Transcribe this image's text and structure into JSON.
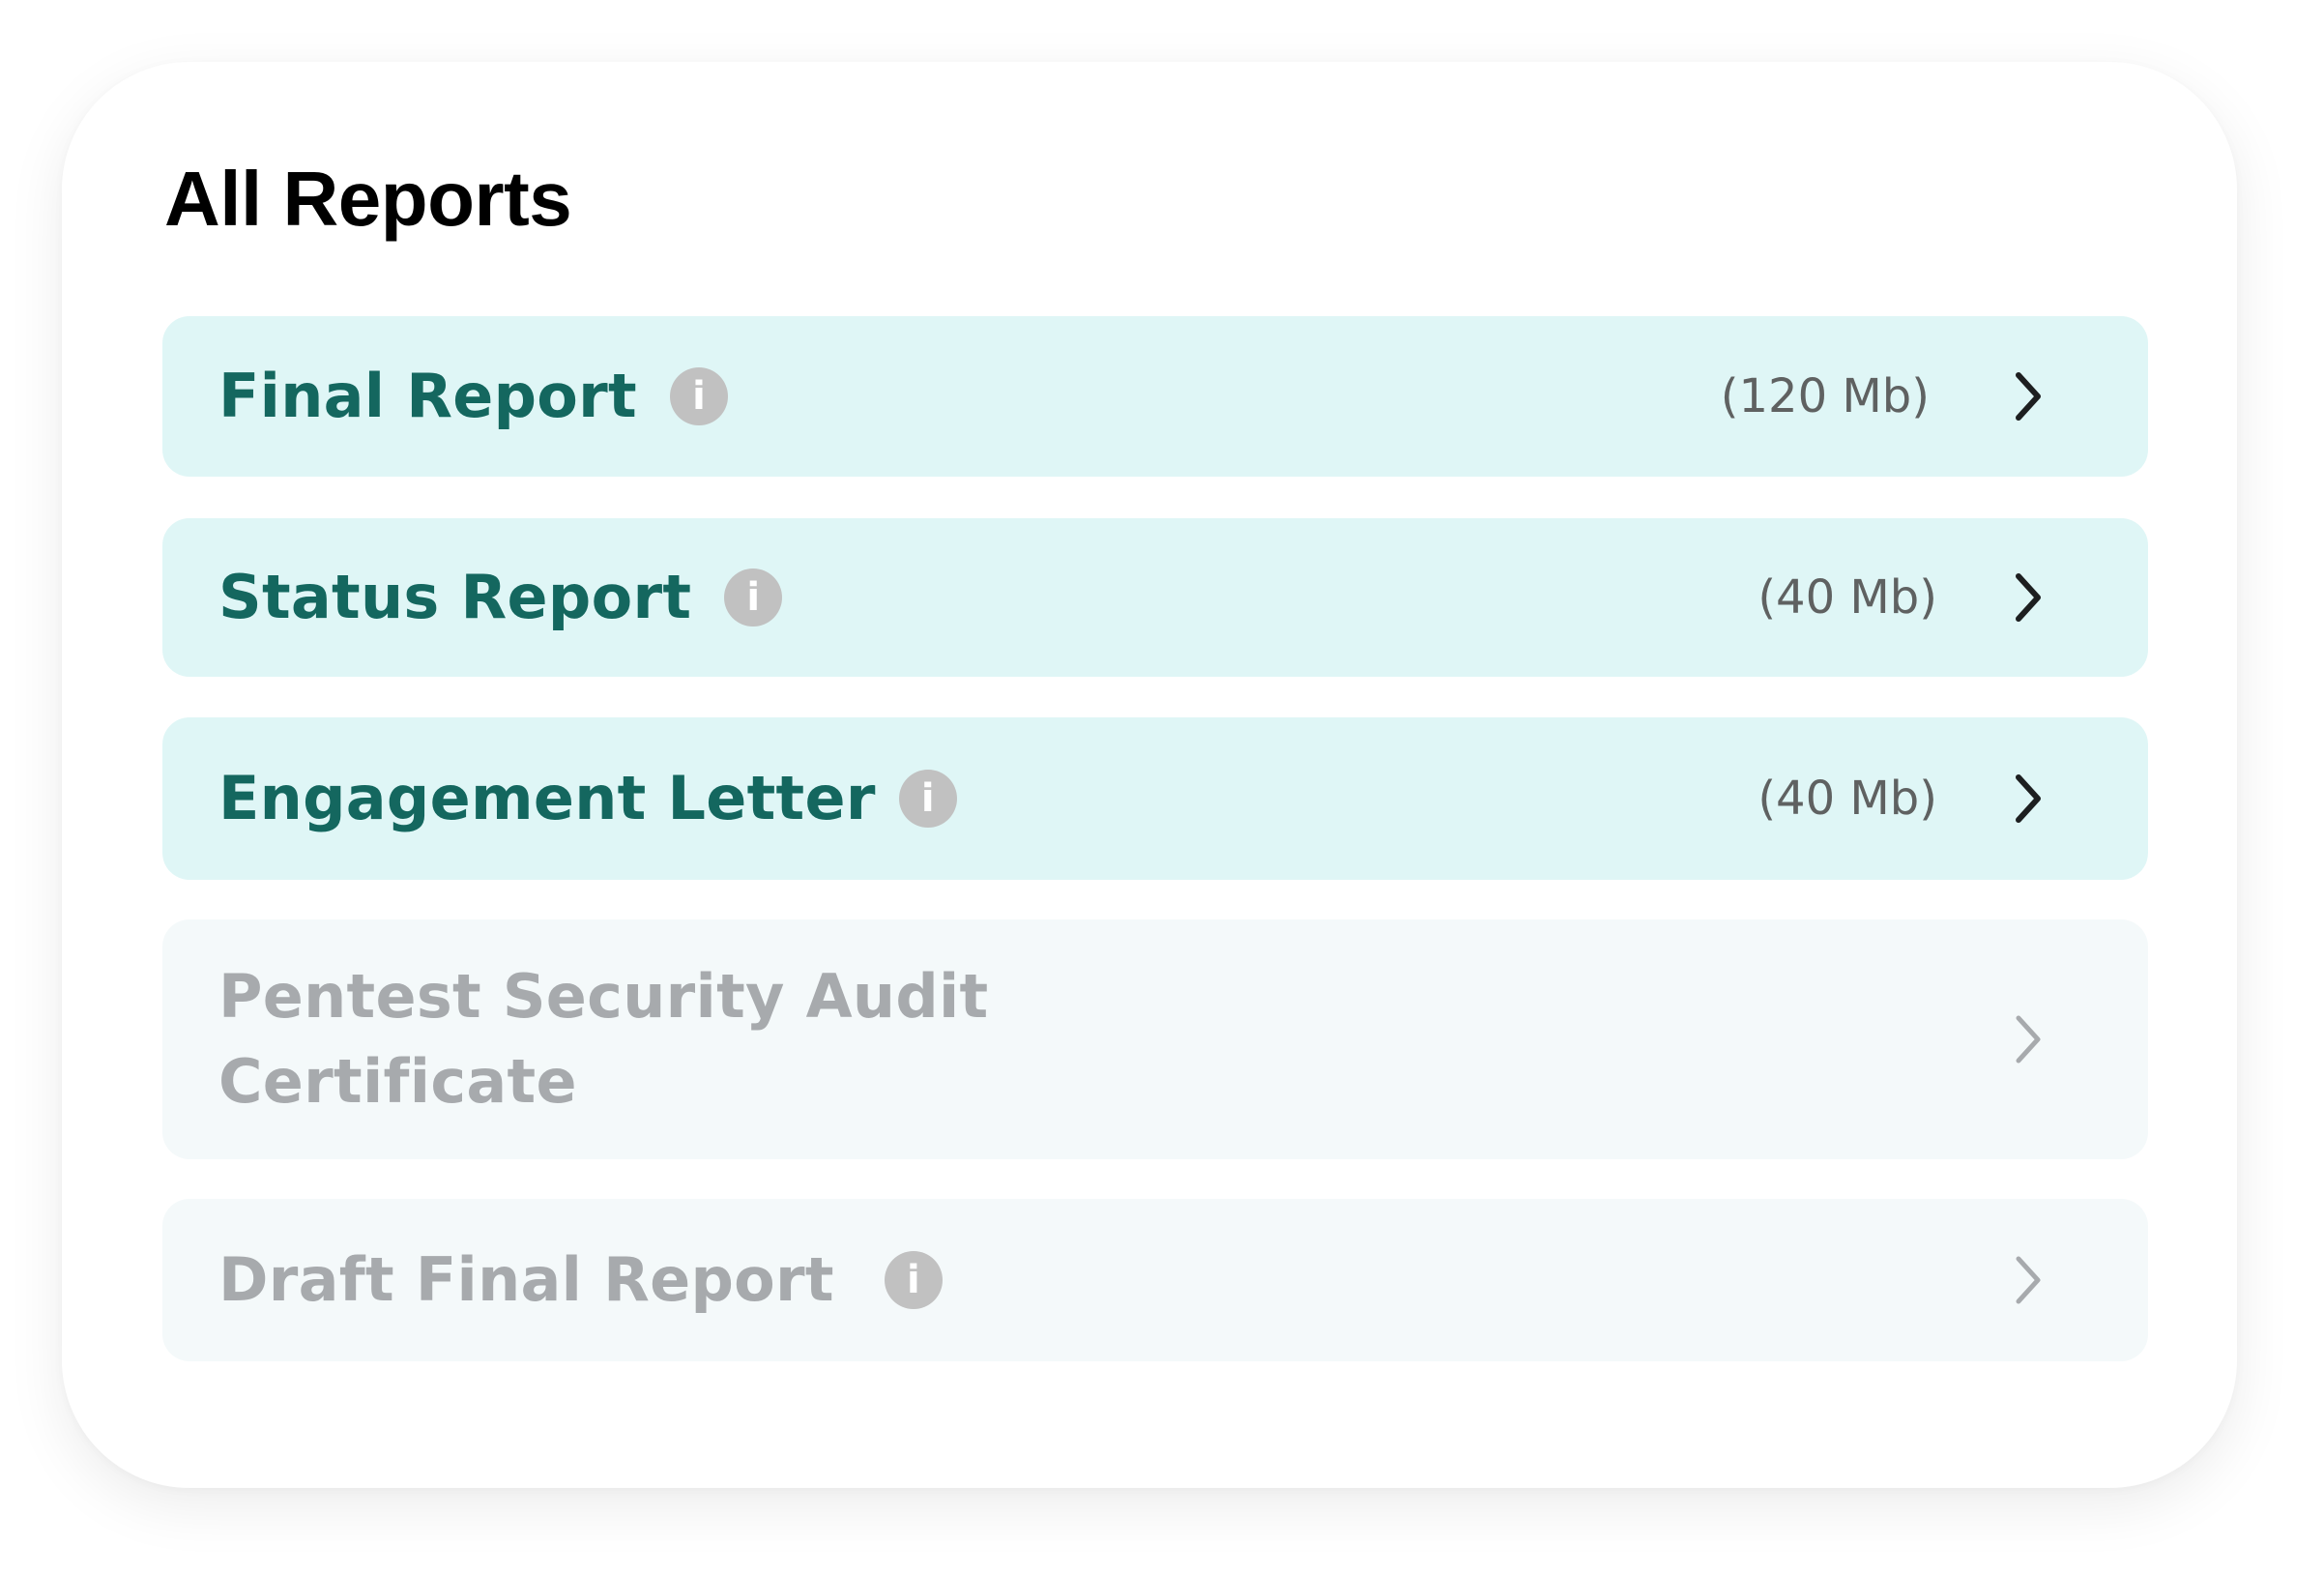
{
  "title": "All Reports",
  "reports": [
    {
      "label": "Final Report",
      "size": "(120 Mb)",
      "enabled": true,
      "has_info": true
    },
    {
      "label": "Status Report",
      "size": "(40 Mb)",
      "enabled": true,
      "has_info": true
    },
    {
      "label": "Engagement Letter",
      "size": "(40 Mb)",
      "enabled": true,
      "has_info": true
    },
    {
      "label_line1": "Pentest Security Audit",
      "label_line2": "Certificate",
      "enabled": false,
      "has_info": false
    },
    {
      "label": "Draft Final Report",
      "enabled": false,
      "has_info": true
    }
  ],
  "icons": {
    "info": "info-icon",
    "chevron": "chevron-right-icon",
    "info_glyph": "i"
  },
  "colors": {
    "active_bg": "#dff6f6",
    "inactive_bg": "#f4f9fa",
    "active_text": "#14675f",
    "inactive_text": "#a7aaad",
    "info_icon": "#c1c1c1"
  }
}
